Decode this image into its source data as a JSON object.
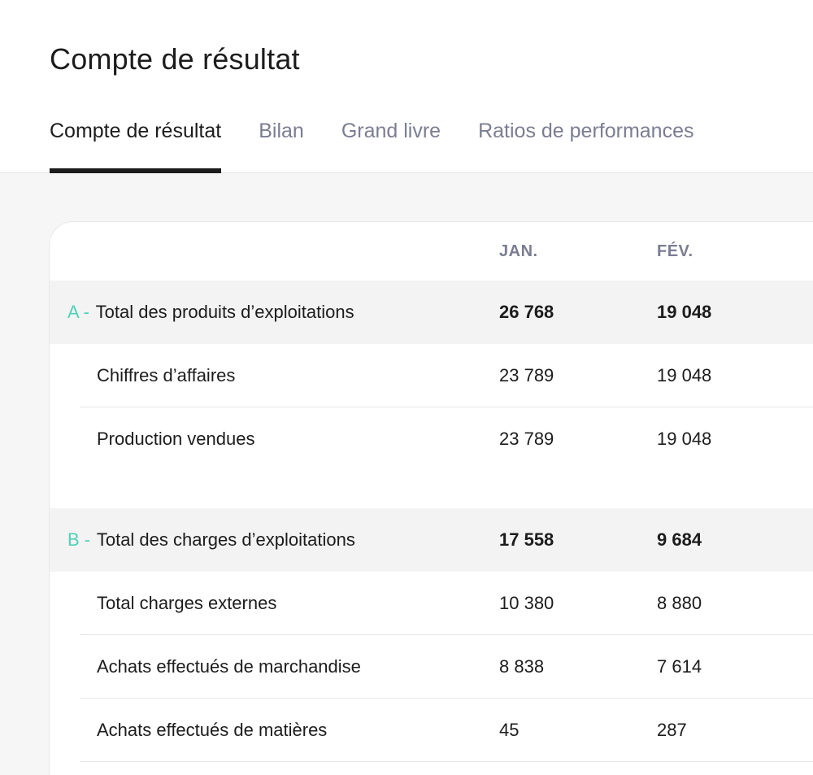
{
  "page_title": "Compte de résultat",
  "tabs": [
    {
      "label": "Compte de résultat",
      "active": true
    },
    {
      "label": "Bilan",
      "active": false
    },
    {
      "label": "Grand livre",
      "active": false
    },
    {
      "label": "Ratios de performances",
      "active": false
    }
  ],
  "table": {
    "columns": [
      "JAN.",
      "FÉV."
    ],
    "rows": [
      {
        "type": "total",
        "letter": "A -",
        "label": "Total des produits d’exploitations",
        "jan": "26 768",
        "fev": "19 048"
      },
      {
        "type": "sub",
        "label": "Chiffres d’affaires",
        "jan": "23 789",
        "fev": "19 048"
      },
      {
        "type": "sub",
        "label": "Production vendues",
        "jan": "23 789",
        "fev": "19 048"
      },
      {
        "type": "total",
        "letter": "B -",
        "label": "Total des charges d’exploitations",
        "jan": "17 558",
        "fev": "9 684"
      },
      {
        "type": "sub",
        "label": "Total charges externes",
        "jan": "10 380",
        "fev": "8 880"
      },
      {
        "type": "sub",
        "label": "Achats effectués de marchandise",
        "jan": "8 838",
        "fev": "7 614"
      },
      {
        "type": "sub",
        "label": "Achats effectués de matières",
        "jan": "45",
        "fev": "287"
      }
    ]
  },
  "colors": {
    "accent_letter": "#4fd1b8",
    "muted_text": "#7b7d92",
    "total_row_bg": "#f3f3f3"
  }
}
